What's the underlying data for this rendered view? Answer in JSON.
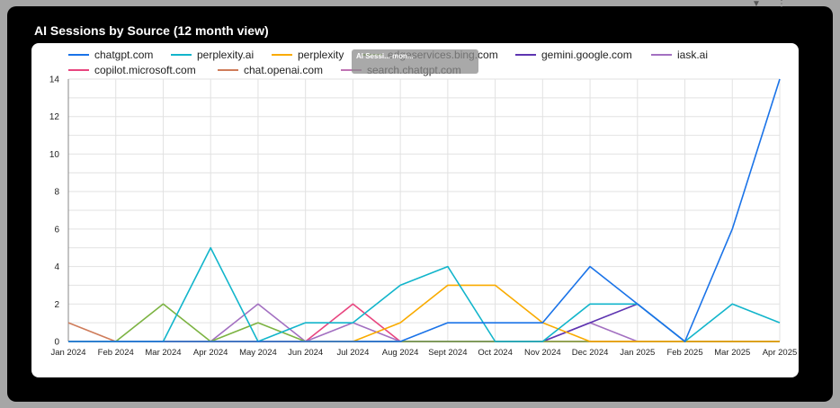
{
  "title": "AI Sessions by Source (12 month view)",
  "tooltip_text": "AI Sessi... mon...",
  "chart_data": {
    "type": "line",
    "title": "AI Sessions by Source (12 month view)",
    "x": [
      "Jan 2024",
      "Feb 2024",
      "Mar 2024",
      "Apr 2024",
      "May 2024",
      "Jun 2024",
      "Jul 2024",
      "Aug 2024",
      "Sept 2024",
      "Oct 2024",
      "Nov 2024",
      "Dec 2024",
      "Jan 2025",
      "Feb 2025",
      "Mar 2025",
      "Apr 2025"
    ],
    "ylim": [
      0,
      14
    ],
    "yticks": [
      0,
      2,
      4,
      6,
      8,
      10,
      12,
      14
    ],
    "grid": true,
    "legend_position": "top",
    "series": [
      {
        "name": "chatgpt.com",
        "color": "#1a73e8",
        "values": [
          0,
          0,
          0,
          0,
          0,
          0,
          0,
          0,
          1,
          1,
          1,
          4,
          2,
          0,
          6,
          14
        ]
      },
      {
        "name": "perplexity.ai",
        "color": "#12b5cb",
        "values": [
          0,
          0,
          0,
          5,
          0,
          1,
          1,
          3,
          4,
          0,
          0,
          2,
          2,
          0,
          2,
          1
        ]
      },
      {
        "name": "perplexity",
        "color": "#f9ab00",
        "values": [
          0,
          0,
          0,
          0,
          0,
          0,
          0,
          1,
          3,
          3,
          1,
          0,
          0,
          0,
          0,
          0
        ]
      },
      {
        "name": "edgeservices.bing.com",
        "color": "#7cb342",
        "values": [
          0,
          0,
          2,
          0,
          1,
          0,
          0,
          0,
          0,
          0,
          0,
          0,
          0,
          0,
          0,
          0
        ]
      },
      {
        "name": "gemini.google.com",
        "color": "#5e35b1",
        "values": [
          0,
          0,
          0,
          0,
          0,
          0,
          0,
          0,
          0,
          0,
          0,
          1,
          2,
          0,
          0,
          0
        ]
      },
      {
        "name": "iask.ai",
        "color": "#a370c1",
        "values": [
          0,
          0,
          0,
          0,
          2,
          0,
          1,
          0,
          0,
          0,
          0,
          1,
          0,
          0,
          0,
          0
        ]
      },
      {
        "name": "copilot.microsoft.com",
        "color": "#e8457f",
        "values": [
          0,
          0,
          0,
          0,
          0,
          0,
          2,
          0,
          0,
          0,
          0,
          0,
          0,
          0,
          0,
          0
        ]
      },
      {
        "name": "chat.openai.com",
        "color": "#cf7c5a",
        "values": [
          1,
          0,
          0,
          0,
          0,
          0,
          0,
          0,
          0,
          0,
          0,
          0,
          0,
          0,
          0,
          0
        ]
      },
      {
        "name": "search.chatgpt.com",
        "color": "#c074b4",
        "values": [
          0,
          0,
          0,
          0,
          0,
          0,
          0,
          0,
          0,
          0,
          0,
          0,
          0,
          0,
          0,
          0
        ]
      }
    ]
  }
}
